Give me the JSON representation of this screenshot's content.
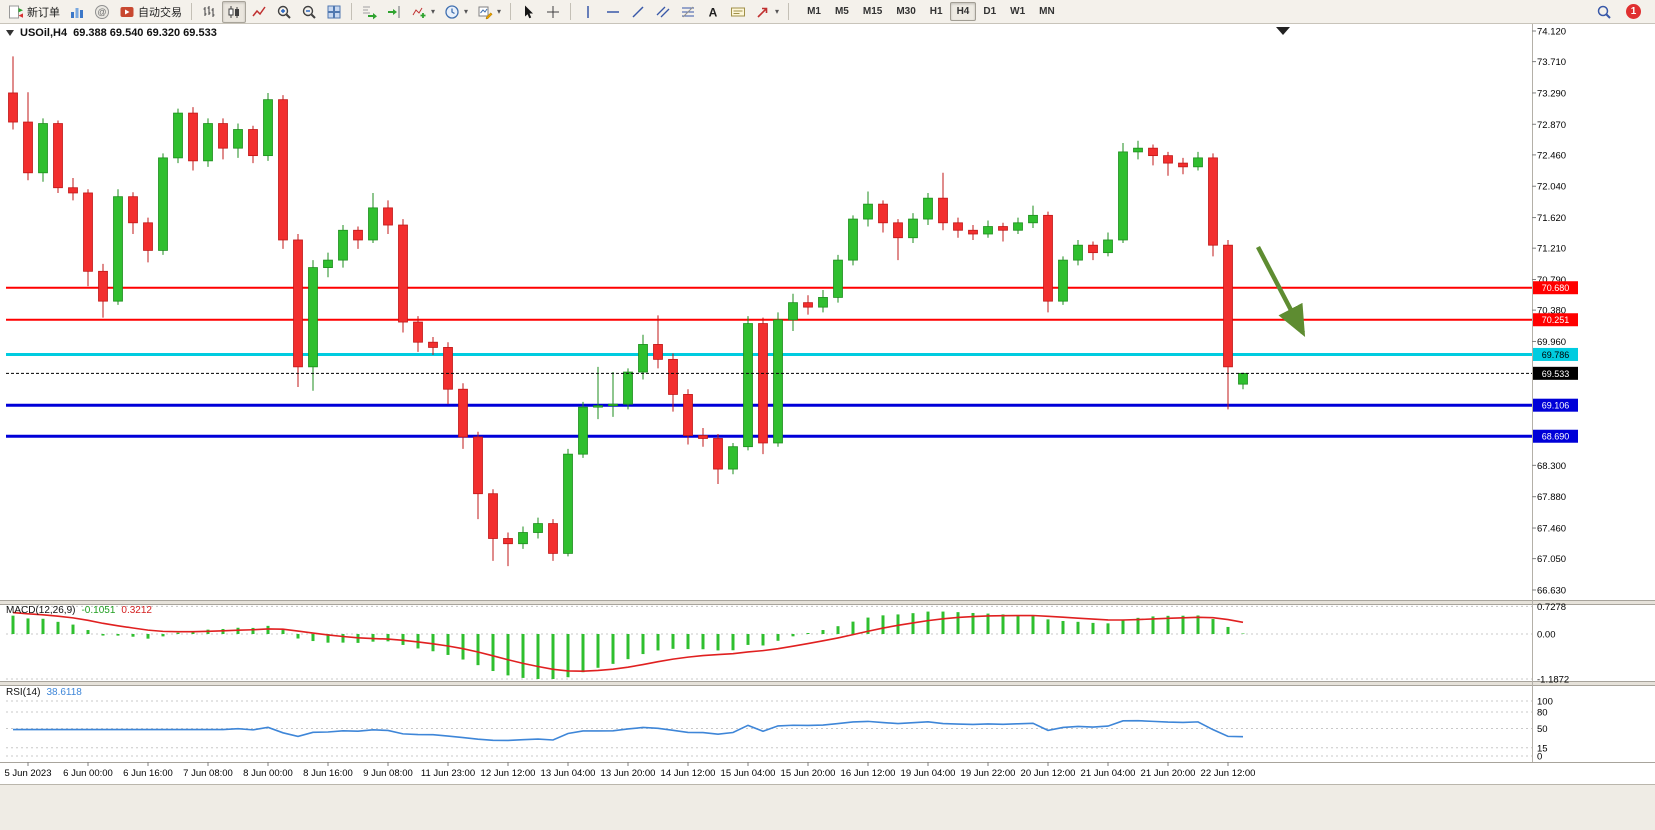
{
  "toolbar": {
    "new_order_label": "新订单",
    "auto_trading_label": "自动交易",
    "timeframes": [
      "M1",
      "M5",
      "M15",
      "M30",
      "H1",
      "H4",
      "D1",
      "W1",
      "MN"
    ],
    "active_timeframe": "H4",
    "notification_count": "1",
    "icons": [
      "new-order-icon",
      "charts-icon",
      "community-icon",
      "auto-trading-icon",
      "bar-chart-icon",
      "candlestick-chart-icon",
      "line-chart-icon",
      "zoom-in-icon",
      "zoom-out-icon",
      "tile-windows-icon",
      "auto-scroll-icon",
      "chart-shift-icon",
      "indicators-icon",
      "periods-icon",
      "templates-icon",
      "cursor-icon",
      "crosshair-icon",
      "vertical-line-icon",
      "horizontal-line-icon",
      "trendline-icon",
      "channel-icon",
      "fibonacci-icon",
      "text-icon",
      "text-label-icon",
      "arrows-icon",
      "search-icon",
      "notification-badge"
    ]
  },
  "chart_header": {
    "title": "USOil,H4",
    "ohlc": "69.388 69.540 69.320 69.533"
  },
  "chart_data": {
    "type": "candlestick",
    "symbol": "USOil",
    "timeframe": "H4",
    "last_ohlc": {
      "open": 69.388,
      "high": 69.54,
      "low": 69.32,
      "close": 69.533
    },
    "current_price": 69.533,
    "colors": {
      "up": "#2FBF2F",
      "up_stroke": "#1E8E1E",
      "down": "#F22E2E",
      "down_stroke": "#C01818",
      "macd_histogram": "#2FBF2F",
      "macd_signal": "#E02020",
      "rsi_line": "#3E86D8",
      "level_red": "#FF0000",
      "level_cyan": "#00CCE0",
      "level_blue": "#0000D8",
      "current_price_line": "#000000",
      "annotation": "#5E8C31"
    },
    "y_axis_labels": [
      "74.120",
      "73.710",
      "73.290",
      "72.870",
      "72.460",
      "72.040",
      "71.620",
      "71.210",
      "70.790",
      "70.380",
      "69.960",
      "68.300",
      "67.880",
      "67.460",
      "67.050",
      "66.630"
    ],
    "time_labels": [
      "5 Jun 2023",
      "6 Jun 00:00",
      "6 Jun 16:00",
      "7 Jun 08:00",
      "8 Jun 00:00",
      "8 Jun 16:00",
      "9 Jun 08:00",
      "11 Jun 23:00",
      "12 Jun 12:00",
      "13 Jun 04:00",
      "13 Jun 20:00",
      "14 Jun 12:00",
      "15 Jun 04:00",
      "15 Jun 20:00",
      "16 Jun 12:00",
      "19 Jun 04:00",
      "19 Jun 22:00",
      "20 Jun 12:00",
      "21 Jun 04:00",
      "21 Jun 20:00",
      "22 Jun 12:00"
    ],
    "levels": [
      {
        "price": 70.68,
        "label": "70.680",
        "color": "#FF0000",
        "width": 2,
        "text_color": "#FFFFFF"
      },
      {
        "price": 70.251,
        "label": "70.251",
        "color": "#FF0000",
        "width": 2,
        "text_color": "#FFFFFF"
      },
      {
        "price": 69.786,
        "label": "69.786",
        "color": "#00CCE0",
        "width": 3,
        "text_color": "#000000"
      },
      {
        "price": 69.106,
        "label": "69.106",
        "color": "#0000D8",
        "width": 3,
        "text_color": "#FFFFFF"
      },
      {
        "price": 68.69,
        "label": "68.690",
        "color": "#0000D8",
        "width": 3,
        "text_color": "#FFFFFF"
      }
    ],
    "candles": [
      [
        73.29,
        73.78,
        72.8,
        72.9
      ],
      [
        72.9,
        73.3,
        72.12,
        72.22
      ],
      [
        72.22,
        72.95,
        72.1,
        72.88
      ],
      [
        72.88,
        72.92,
        71.95,
        72.02
      ],
      [
        72.02,
        72.15,
        71.85,
        71.95
      ],
      [
        71.95,
        72.0,
        70.7,
        70.9
      ],
      [
        70.9,
        71.0,
        70.28,
        70.5
      ],
      [
        70.5,
        72.0,
        70.45,
        71.9
      ],
      [
        71.9,
        71.96,
        71.4,
        71.55
      ],
      [
        71.55,
        71.62,
        71.02,
        71.18
      ],
      [
        71.18,
        72.48,
        71.12,
        72.42
      ],
      [
        72.42,
        73.08,
        72.35,
        73.02
      ],
      [
        73.02,
        73.1,
        72.25,
        72.38
      ],
      [
        72.38,
        72.95,
        72.3,
        72.88
      ],
      [
        72.88,
        72.95,
        72.4,
        72.55
      ],
      [
        72.55,
        72.88,
        72.42,
        72.8
      ],
      [
        72.8,
        72.85,
        72.35,
        72.45
      ],
      [
        72.45,
        73.29,
        72.38,
        73.2
      ],
      [
        73.2,
        73.26,
        71.2,
        71.32
      ],
      [
        71.32,
        71.4,
        69.35,
        69.62
      ],
      [
        69.62,
        71.05,
        69.3,
        70.95
      ],
      [
        70.95,
        71.15,
        70.82,
        71.05
      ],
      [
        71.05,
        71.52,
        70.95,
        71.45
      ],
      [
        71.45,
        71.5,
        71.2,
        71.32
      ],
      [
        71.32,
        71.95,
        71.28,
        71.75
      ],
      [
        71.75,
        71.85,
        71.4,
        71.52
      ],
      [
        71.52,
        71.6,
        70.08,
        70.22
      ],
      [
        70.22,
        70.3,
        69.82,
        69.95
      ],
      [
        69.95,
        70.02,
        69.78,
        69.88
      ],
      [
        69.88,
        69.95,
        69.12,
        69.32
      ],
      [
        69.32,
        69.4,
        68.52,
        68.68
      ],
      [
        68.68,
        68.75,
        67.58,
        67.92
      ],
      [
        67.92,
        67.98,
        67.02,
        67.32
      ],
      [
        67.32,
        67.4,
        66.95,
        67.25
      ],
      [
        67.25,
        67.48,
        67.18,
        67.4
      ],
      [
        67.4,
        67.6,
        67.32,
        67.52
      ],
      [
        67.52,
        67.58,
        67.02,
        67.12
      ],
      [
        67.12,
        68.52,
        67.08,
        68.45
      ],
      [
        68.45,
        69.15,
        68.4,
        69.08
      ],
      [
        69.08,
        69.62,
        68.92,
        69.1
      ],
      [
        69.1,
        69.55,
        68.95,
        69.12
      ],
      [
        69.12,
        69.6,
        69.05,
        69.55
      ],
      [
        69.55,
        70.05,
        69.45,
        69.92
      ],
      [
        69.92,
        70.31,
        69.6,
        69.72
      ],
      [
        69.72,
        69.8,
        69.02,
        69.25
      ],
      [
        69.25,
        69.32,
        68.58,
        68.7
      ],
      [
        68.7,
        68.8,
        68.55,
        68.66
      ],
      [
        68.66,
        68.72,
        68.05,
        68.25
      ],
      [
        68.25,
        68.6,
        68.18,
        68.55
      ],
      [
        68.55,
        70.3,
        68.5,
        70.2
      ],
      [
        70.2,
        70.28,
        68.45,
        68.6
      ],
      [
        68.6,
        70.35,
        68.55,
        70.25
      ],
      [
        70.25,
        70.6,
        70.1,
        70.48
      ],
      [
        70.48,
        70.58,
        70.32,
        70.42
      ],
      [
        70.42,
        70.65,
        70.35,
        70.55
      ],
      [
        70.55,
        71.12,
        70.48,
        71.05
      ],
      [
        71.05,
        71.65,
        70.98,
        71.6
      ],
      [
        71.6,
        71.97,
        71.5,
        71.8
      ],
      [
        71.8,
        71.85,
        71.42,
        71.55
      ],
      [
        71.55,
        71.6,
        71.05,
        71.35
      ],
      [
        71.35,
        71.68,
        71.28,
        71.6
      ],
      [
        71.6,
        71.95,
        71.52,
        71.88
      ],
      [
        71.88,
        72.22,
        71.45,
        71.55
      ],
      [
        71.55,
        71.62,
        71.35,
        71.45
      ],
      [
        71.45,
        71.52,
        71.32,
        71.4
      ],
      [
        71.4,
        71.58,
        71.35,
        71.5
      ],
      [
        71.5,
        71.55,
        71.3,
        71.45
      ],
      [
        71.45,
        71.62,
        71.4,
        71.55
      ],
      [
        71.55,
        71.78,
        71.48,
        71.65
      ],
      [
        71.65,
        71.7,
        70.35,
        70.5
      ],
      [
        70.5,
        71.1,
        70.45,
        71.05
      ],
      [
        71.05,
        71.32,
        70.98,
        71.25
      ],
      [
        71.25,
        71.3,
        71.05,
        71.15
      ],
      [
        71.15,
        71.42,
        71.1,
        71.32
      ],
      [
        71.32,
        72.62,
        71.28,
        72.5
      ],
      [
        72.5,
        72.65,
        72.4,
        72.55
      ],
      [
        72.55,
        72.6,
        72.32,
        72.45
      ],
      [
        72.45,
        72.5,
        72.18,
        72.35
      ],
      [
        72.35,
        72.42,
        72.2,
        72.3
      ],
      [
        72.3,
        72.5,
        72.25,
        72.42
      ],
      [
        72.42,
        72.48,
        71.1,
        71.25
      ],
      [
        71.25,
        71.32,
        69.05,
        69.62
      ],
      [
        69.388,
        69.54,
        69.32,
        69.533
      ]
    ],
    "indicators": {
      "macd": {
        "label": "MACD(12,26,9)",
        "value_main": "-0.1051",
        "value_signal": "0.3212",
        "fast": 12,
        "slow": 26,
        "signal": 9,
        "axis_labels": [
          "0.7278",
          "0.00",
          "-1.1872"
        ],
        "axis_values": [
          0.7278,
          0,
          -1.1872
        ]
      },
      "rsi": {
        "label": "RSI(14)",
        "value": "38.6118",
        "period": 14,
        "levels": [
          100,
          80,
          50,
          15,
          0
        ]
      }
    }
  }
}
